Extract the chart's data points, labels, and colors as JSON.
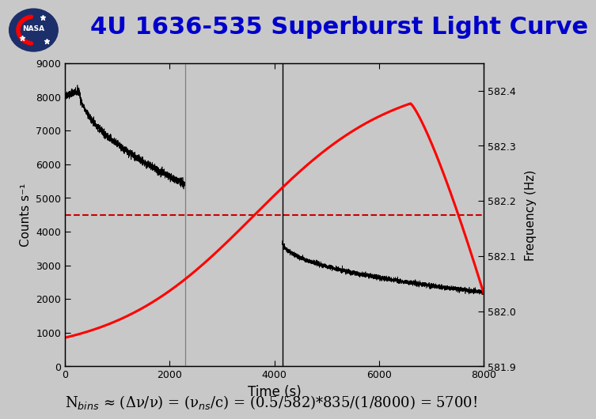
{
  "title": "4U 1636-535 Superburst Light Curve",
  "title_color": "#0000CC",
  "title_fontsize": 22,
  "xlabel": "Time (s)",
  "ylabel_left": "Counts s⁻¹",
  "ylabel_right": "Frequency (Hz)",
  "xlim": [
    0,
    8000
  ],
  "ylim_left": [
    0,
    9000
  ],
  "ylim_right": [
    581.9,
    582.45
  ],
  "yticks_left": [
    0,
    1000,
    2000,
    3000,
    4000,
    5000,
    6000,
    7000,
    8000,
    9000
  ],
  "yticks_right": [
    581.9,
    582.0,
    582.1,
    582.2,
    582.3,
    582.4
  ],
  "xticks": [
    0,
    2000,
    4000,
    6000,
    8000
  ],
  "dashed_line_y": 4500,
  "vline1_x": 2300,
  "vline2_x": 4150,
  "bg_color": "#c8c8c8",
  "plot_bg_color": "#c8c8c8",
  "formula_text": "N$_{bins}$ ≈ (Δν/ν) = (ν$_{ns}$/c) = (0.5/582)*835/(1/8000) = 5700!",
  "formula_fontsize": 13,
  "lc_segment1_peak_x": 280,
  "lc_segment1_peak_y": 8150,
  "lc_segment1_start_y": 8000,
  "lc_segment1_end_y": 5400,
  "lc_segment2_start_y": 3750,
  "lc_segment2_end_y": 2200,
  "freq_curve_start_y": 581.92,
  "freq_curve_peak_y": 582.425,
  "freq_curve_peak_x": 6600,
  "freq_curve_end_y": 582.05
}
